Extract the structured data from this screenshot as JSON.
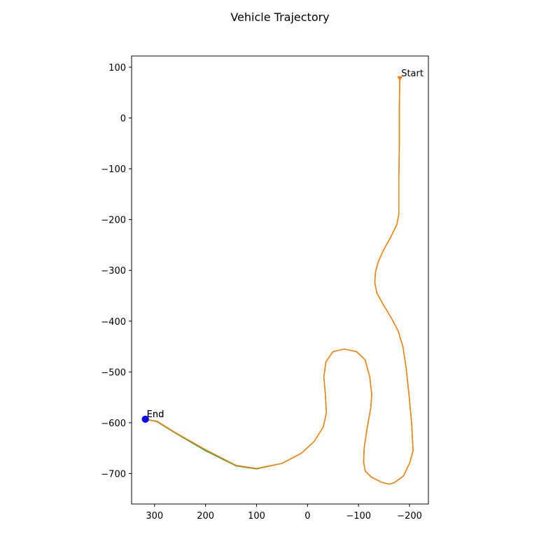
{
  "chart_data": {
    "type": "line",
    "title": "Vehicle Trajectory",
    "xlabel": "",
    "ylabel": "",
    "xlim": [
      345,
      -237
    ],
    "ylim": [
      -760,
      122
    ],
    "x_inverted": true,
    "grid": false,
    "x_ticks": [
      300,
      200,
      100,
      0,
      -100,
      -200
    ],
    "x_tick_labels": [
      "300",
      "200",
      "100",
      "0",
      "−100",
      "−200"
    ],
    "y_ticks": [
      100,
      0,
      -100,
      -200,
      -300,
      -400,
      -500,
      -600,
      -700
    ],
    "y_tick_labels": [
      "100",
      "0",
      "−100",
      "−200",
      "−300",
      "−400",
      "−500",
      "−600",
      "−700"
    ],
    "series": [
      {
        "color": "#2ca02c",
        "points": [
          [
            -181,
            78
          ],
          [
            -180,
            20
          ],
          [
            -180,
            -50
          ],
          [
            -179,
            -120
          ],
          [
            -179,
            -190
          ],
          [
            -175,
            -210
          ],
          [
            -163,
            -235
          ],
          [
            -148,
            -262
          ],
          [
            -138,
            -285
          ],
          [
            -133,
            -305
          ],
          [
            -132,
            -325
          ],
          [
            -136,
            -345
          ],
          [
            -150,
            -370
          ],
          [
            -165,
            -395
          ],
          [
            -178,
            -420
          ],
          [
            -187,
            -450
          ],
          [
            -193,
            -490
          ],
          [
            -199,
            -545
          ],
          [
            -204,
            -600
          ],
          [
            -207,
            -655
          ],
          [
            -200,
            -680
          ],
          [
            -188,
            -705
          ],
          [
            -170,
            -718
          ],
          [
            -160,
            -721
          ],
          [
            -145,
            -717
          ],
          [
            -125,
            -707
          ],
          [
            -113,
            -695
          ],
          [
            -110,
            -678
          ],
          [
            -111,
            -650
          ],
          [
            -117,
            -610
          ],
          [
            -124,
            -570
          ],
          [
            -126,
            -545
          ],
          [
            -122,
            -510
          ],
          [
            -113,
            -476
          ],
          [
            -96,
            -460
          ],
          [
            -72,
            -455
          ],
          [
            -50,
            -460
          ],
          [
            -36,
            -480
          ],
          [
            -32,
            -510
          ],
          [
            -35,
            -545
          ],
          [
            -37,
            -580
          ],
          [
            -31,
            -608
          ],
          [
            -13,
            -637
          ],
          [
            12,
            -660
          ],
          [
            50,
            -680
          ],
          [
            100,
            -691
          ],
          [
            140,
            -685
          ],
          [
            200,
            -655
          ],
          [
            260,
            -620
          ],
          [
            295,
            -598
          ],
          [
            318,
            -593
          ]
        ]
      },
      {
        "color": "#ff7f0e",
        "points": [
          [
            -181,
            78
          ],
          [
            -180,
            20
          ],
          [
            -180,
            -50
          ],
          [
            -179,
            -120
          ],
          [
            -179,
            -190
          ],
          [
            -175,
            -210
          ],
          [
            -163,
            -235
          ],
          [
            -148,
            -262
          ],
          [
            -138,
            -285
          ],
          [
            -133,
            -305
          ],
          [
            -132,
            -325
          ],
          [
            -136,
            -345
          ],
          [
            -150,
            -370
          ],
          [
            -165,
            -395
          ],
          [
            -178,
            -420
          ],
          [
            -187,
            -450
          ],
          [
            -193,
            -490
          ],
          [
            -199,
            -545
          ],
          [
            -204,
            -600
          ],
          [
            -207,
            -655
          ],
          [
            -200,
            -680
          ],
          [
            -188,
            -705
          ],
          [
            -170,
            -718
          ],
          [
            -160,
            -721
          ],
          [
            -145,
            -717
          ],
          [
            -125,
            -707
          ],
          [
            -113,
            -695
          ],
          [
            -110,
            -678
          ],
          [
            -111,
            -650
          ],
          [
            -117,
            -610
          ],
          [
            -124,
            -570
          ],
          [
            -126,
            -545
          ],
          [
            -122,
            -510
          ],
          [
            -113,
            -476
          ],
          [
            -96,
            -460
          ],
          [
            -72,
            -455
          ],
          [
            -50,
            -460
          ],
          [
            -36,
            -480
          ],
          [
            -32,
            -510
          ],
          [
            -35,
            -545
          ],
          [
            -37,
            -580
          ],
          [
            -31,
            -608
          ],
          [
            -13,
            -637
          ],
          [
            12,
            -660
          ],
          [
            50,
            -680
          ],
          [
            100,
            -690
          ],
          [
            140,
            -684
          ],
          [
            200,
            -653
          ],
          [
            260,
            -619
          ],
          [
            295,
            -597
          ],
          [
            318,
            -593
          ]
        ]
      }
    ],
    "markers": [
      {
        "label": "Start",
        "x": -181,
        "y": 78,
        "shape": "triangle",
        "color": "#ff7f0e"
      },
      {
        "label": "End",
        "x": 318,
        "y": -593,
        "shape": "circle",
        "color": "#0000ff"
      },
      {
        "label": "End",
        "x": 318,
        "y": -593,
        "shape": "circle",
        "color": "#0000ff"
      }
    ]
  }
}
